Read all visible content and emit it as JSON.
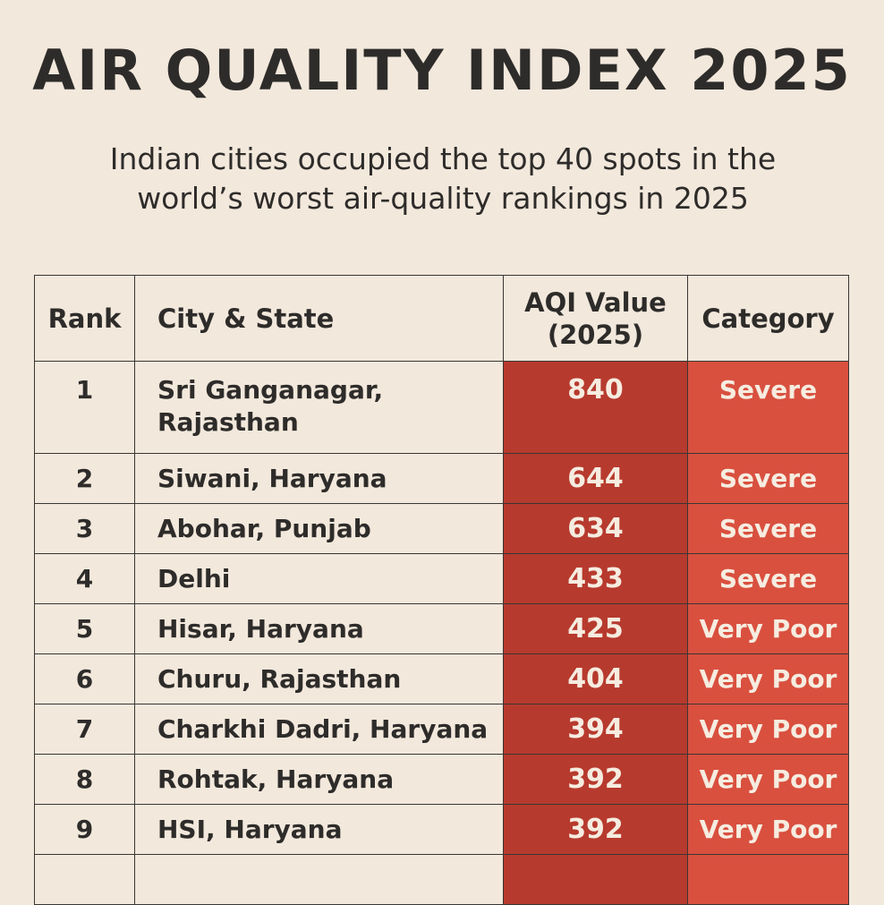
{
  "title": "AIR QUALITY INDEX 2025",
  "subtitle": "Indian cities occupied the top 40 spots in the world’s worst air-quality rankings in 2025",
  "table": {
    "headers": {
      "rank": "Rank",
      "city": "City & State",
      "aqi": "AQI Value (2025)",
      "category": "Category"
    },
    "rows": [
      {
        "rank": "1",
        "city": "Sri Ganganagar, Rajasthan",
        "aqi": "840",
        "category": "Severe"
      },
      {
        "rank": "2",
        "city": "Siwani, Haryana",
        "aqi": "644",
        "category": "Severe"
      },
      {
        "rank": "3",
        "city": "Abohar, Punjab",
        "aqi": "634",
        "category": "Severe"
      },
      {
        "rank": "4",
        "city": "Delhi",
        "aqi": "433",
        "category": "Severe"
      },
      {
        "rank": "5",
        "city": "Hisar, Haryana",
        "aqi": "425",
        "category": "Very Poor"
      },
      {
        "rank": "6",
        "city": "Churu, Rajasthan",
        "aqi": "404",
        "category": "Very Poor"
      },
      {
        "rank": "7",
        "city": "Charkhi Dadri, Haryana",
        "aqi": "394",
        "category": "Very Poor"
      },
      {
        "rank": "8",
        "city": "Rohtak, Haryana",
        "aqi": "392",
        "category": "Very Poor"
      },
      {
        "rank": "9",
        "city": "HSI, Haryana",
        "aqi": "392",
        "category": "Very Poor"
      }
    ]
  },
  "colors": {
    "background": "#f2e8dc",
    "aqi_cell": "#b73a2e",
    "category_cell": "#d9503f",
    "text": "#2e2c2a"
  }
}
